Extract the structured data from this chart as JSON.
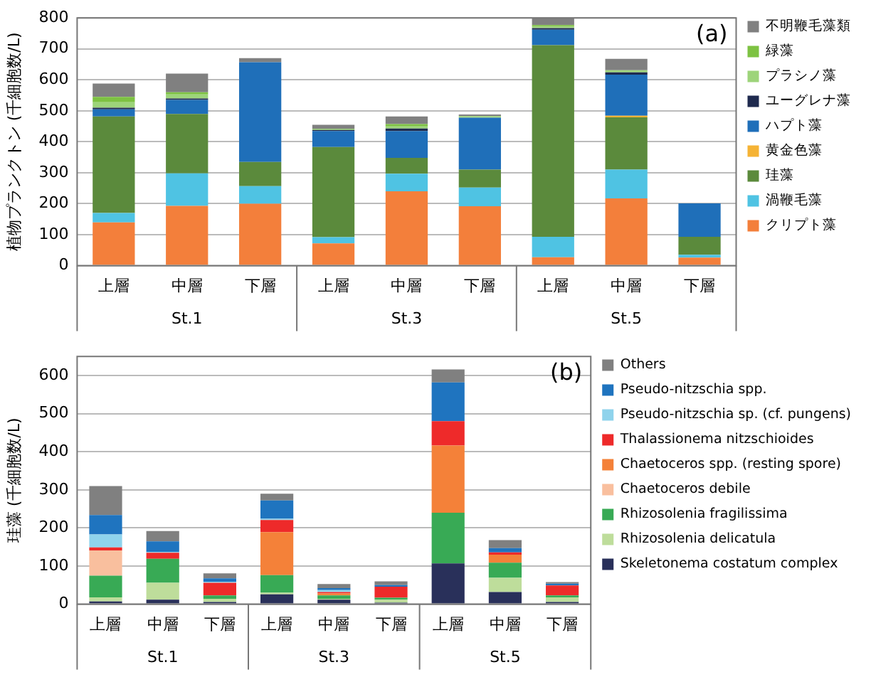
{
  "chart_data": [
    {
      "type": "bar",
      "stacked": true,
      "ylabel": "植物プランクトン (千細胞数/L)",
      "categories": [
        "上層",
        "中層",
        "下層",
        "上層",
        "中層",
        "下層",
        "上層",
        "中層",
        "下層"
      ],
      "annotations": [
        "(a)",
        "St.1",
        "St.3",
        "St.5"
      ],
      "ylim": [
        0,
        800
      ],
      "yticks": [
        0,
        100,
        200,
        300,
        400,
        500,
        600,
        700,
        800
      ],
      "grid": "y",
      "legend": "right",
      "series": [
        {
          "name": "クリプト藻",
          "color": "#f37f3b",
          "values": [
            140,
            193,
            200,
            72,
            240,
            192,
            27,
            217,
            26
          ]
        },
        {
          "name": "渦鞭毛藻",
          "color": "#4fc3e3",
          "values": [
            30,
            105,
            57,
            20,
            57,
            60,
            66,
            93,
            9
          ]
        },
        {
          "name": "珪藻",
          "color": "#5b8a3c",
          "values": [
            312,
            192,
            78,
            291,
            51,
            58,
            619,
            169,
            58
          ]
        },
        {
          "name": "黄金色藻",
          "color": "#f5b335",
          "values": [
            0,
            0,
            0,
            0,
            0,
            0,
            0,
            5,
            0
          ]
        },
        {
          "name": "ハプト藻",
          "color": "#1f6fb9",
          "values": [
            23,
            45,
            322,
            52,
            87,
            168,
            50,
            133,
            108
          ]
        },
        {
          "name": "ユーグレナ藻",
          "color": "#1f2a4e",
          "values": [
            5,
            5,
            0,
            3,
            8,
            0,
            5,
            7,
            0
          ]
        },
        {
          "name": "プラシノ藻",
          "color": "#9dd47a",
          "values": [
            18,
            13,
            0,
            4,
            7,
            5,
            5,
            7,
            0
          ]
        },
        {
          "name": "緑藻",
          "color": "#7dc242",
          "values": [
            17,
            7,
            0,
            0,
            7,
            0,
            5,
            0,
            0
          ]
        },
        {
          "name": "不明鞭毛藻類",
          "color": "#808080",
          "values": [
            43,
            60,
            13,
            13,
            25,
            5,
            23,
            37,
            0
          ]
        }
      ]
    },
    {
      "type": "bar",
      "stacked": true,
      "ylabel": "珪藻 (千細胞数/L)",
      "categories": [
        "上層",
        "中層",
        "下層",
        "上層",
        "中層",
        "下層",
        "上層",
        "中層",
        "下層"
      ],
      "annotations": [
        "(b)",
        "St.1",
        "St.3",
        "St.5"
      ],
      "ylim": [
        0,
        650
      ],
      "yticks": [
        0,
        100,
        200,
        300,
        400,
        500,
        600
      ],
      "grid": "y",
      "legend": "right",
      "series": [
        {
          "name": "Skeletonema costatum complex",
          "color": "#29305a",
          "values": [
            7,
            12,
            6,
            26,
            12,
            4,
            107,
            32,
            6
          ]
        },
        {
          "name": "Rhizosolenia delicatula",
          "color": "#bedd9b",
          "values": [
            11,
            44,
            8,
            4,
            2,
            8,
            0,
            37,
            12
          ]
        },
        {
          "name": "Rhizosolenia fragilissima",
          "color": "#38aa55",
          "values": [
            57,
            63,
            9,
            46,
            9,
            5,
            133,
            40,
            5
          ]
        },
        {
          "name": "Chaetoceros debile",
          "color": "#f9bf9e",
          "values": [
            66,
            0,
            0,
            0,
            0,
            0,
            0,
            0,
            0
          ]
        },
        {
          "name": "Chaetoceros spp. (resting spore)",
          "color": "#f48139",
          "values": [
            0,
            0,
            0,
            113,
            5,
            0,
            176,
            21,
            0
          ]
        },
        {
          "name": "Thalassionema nitzschioides",
          "color": "#ee2a2a",
          "values": [
            8,
            16,
            33,
            32,
            4,
            29,
            64,
            6,
            26
          ]
        },
        {
          "name": "Pseudo-nitzschia sp. (cf. pungens)",
          "color": "#8fd3ec",
          "values": [
            34,
            2,
            3,
            3,
            5,
            0,
            0,
            0,
            0
          ]
        },
        {
          "name": "Pseudo-nitzschia spp.",
          "color": "#1f74bf",
          "values": [
            51,
            28,
            9,
            48,
            5,
            4,
            102,
            11,
            5
          ]
        },
        {
          "name": "Others",
          "color": "#808080",
          "values": [
            76,
            27,
            13,
            18,
            11,
            10,
            34,
            21,
            4
          ]
        }
      ]
    }
  ]
}
